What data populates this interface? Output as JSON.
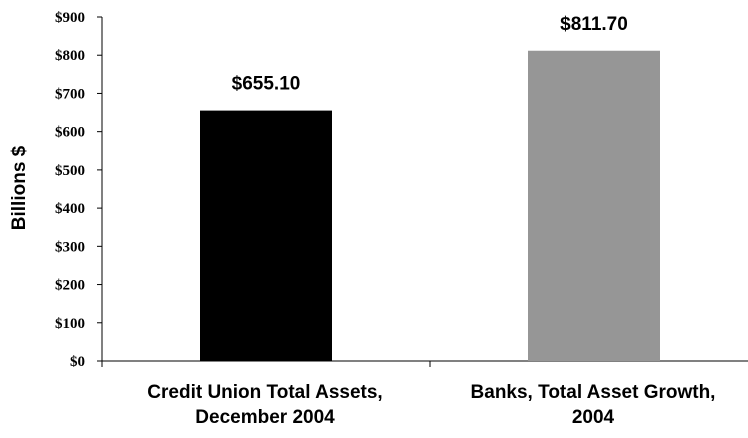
{
  "chart_data": {
    "type": "bar",
    "categories": [
      [
        "Credit Union Total Assets,",
        "December 2004"
      ],
      [
        "Banks, Total Asset Growth,",
        "2004"
      ]
    ],
    "values": [
      655.1,
      811.7
    ],
    "data_labels": [
      "$655.10",
      "$811.70"
    ],
    "colors": [
      "#000000",
      "#969696"
    ],
    "ylabel": "Billions $",
    "ylim": [
      0,
      900
    ],
    "yticks": [
      0,
      100,
      200,
      300,
      400,
      500,
      600,
      700,
      800,
      900
    ],
    "ytick_labels": [
      "$0",
      "$100",
      "$200",
      "$300",
      "$400",
      "$500",
      "$600",
      "$700",
      "$800",
      "$900"
    ],
    "grid": false,
    "legend": false
  }
}
